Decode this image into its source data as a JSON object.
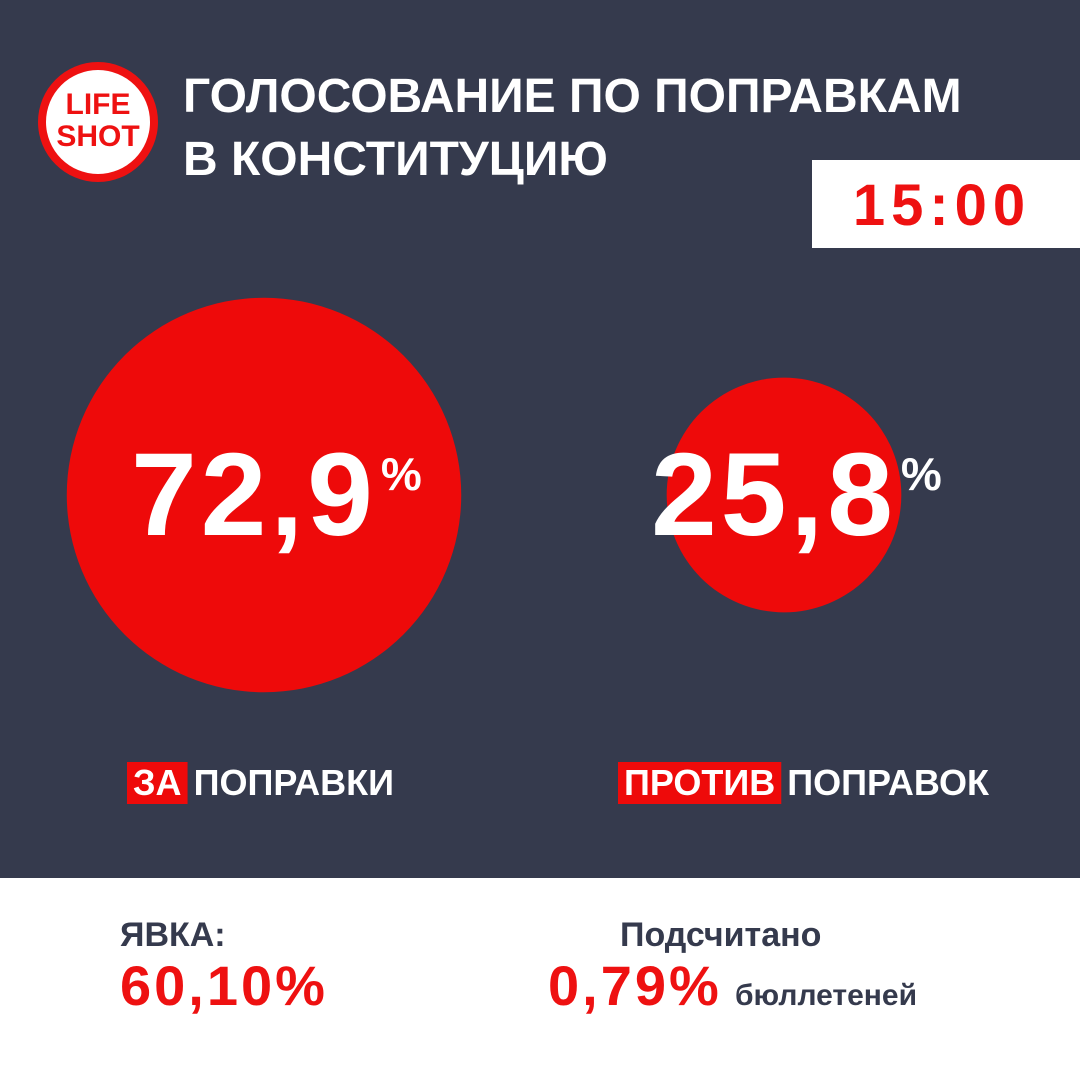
{
  "logo": {
    "line1": "LIFE",
    "line2": "SHOT"
  },
  "header": {
    "title_line1": "ГОЛОСОВАНИЕ ПО ПОПРАВКАМ",
    "title_line2": "В КОНСТИТУЦИЮ",
    "time": "15:00"
  },
  "votes": [
    {
      "value": 72.9,
      "value_label": "72,9",
      "unit": "%",
      "label_highlight": "ЗА",
      "label_rest": "ПОПРАВКИ"
    },
    {
      "value": 25.8,
      "value_label": "25,8",
      "unit": "%",
      "label_highlight": "ПРОТИВ",
      "label_rest": "ПОПРАВОК"
    }
  ],
  "footer": {
    "turnout": {
      "label": "ЯВКА:",
      "value": "60,10%"
    },
    "counted": {
      "label": "Подсчитано",
      "value": "0,79%",
      "suffix": "бюллетеней"
    }
  }
}
